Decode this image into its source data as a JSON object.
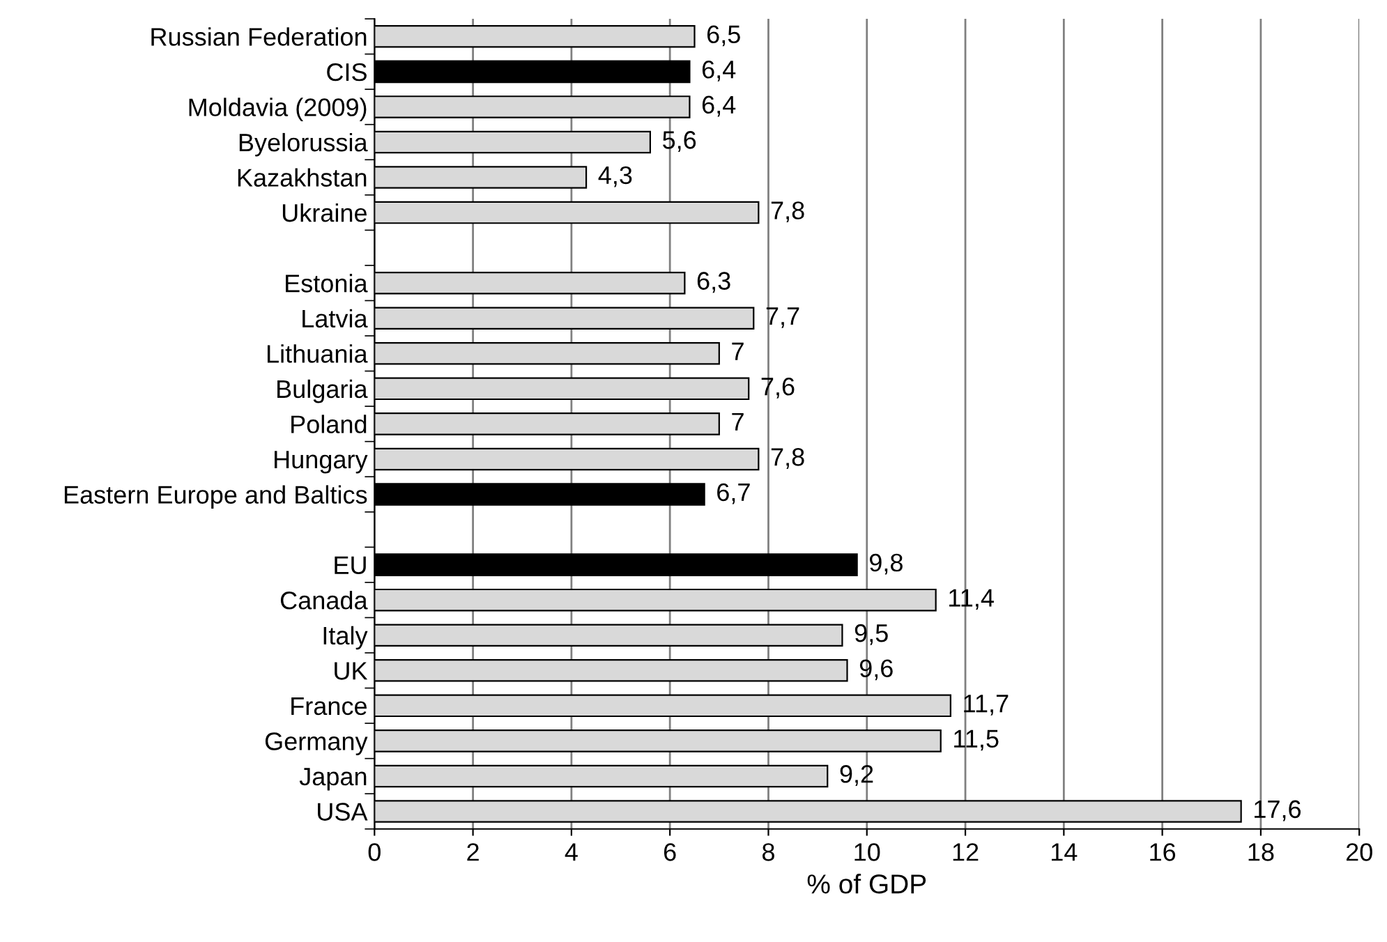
{
  "chart_data": {
    "type": "bar",
    "orientation": "horizontal",
    "xlabel": "% of GDP",
    "categories": [
      "Russian Federation",
      "CIS",
      "Moldavia (2009)",
      "Byelorussia",
      "Kazakhstan",
      "Ukraine",
      null,
      "Estonia",
      "Latvia",
      "Lithuania",
      "Bulgaria",
      "Poland",
      "Hungary",
      "Eastern Europe and Baltics",
      null,
      "EU",
      "Canada",
      "Italy",
      "UK",
      "France",
      "Germany",
      "Japan",
      "USA"
    ],
    "values": [
      6.5,
      6.4,
      6.4,
      5.6,
      4.3,
      7.8,
      null,
      6.3,
      7.7,
      7,
      7.6,
      7,
      7.8,
      6.7,
      null,
      9.8,
      11.4,
      9.5,
      9.6,
      11.7,
      11.5,
      9.2,
      17.6
    ],
    "value_labels": [
      "6,5",
      "6,4",
      "6,4",
      "5,6",
      "4,3",
      "7,8",
      null,
      "6,3",
      "7,7",
      "7",
      "7,6",
      "7",
      "7,8",
      "6,7",
      null,
      "9,8",
      "11,4",
      "9,5",
      "9,6",
      "11,7",
      "11,5",
      "9,2",
      "17,6"
    ],
    "colors": [
      "#d9d9d9",
      "#000000",
      "#d9d9d9",
      "#d9d9d9",
      "#d9d9d9",
      "#d9d9d9",
      null,
      "#d9d9d9",
      "#d9d9d9",
      "#d9d9d9",
      "#d9d9d9",
      "#d9d9d9",
      "#d9d9d9",
      "#000000",
      null,
      "#000000",
      "#d9d9d9",
      "#d9d9d9",
      "#d9d9d9",
      "#d9d9d9",
      "#d9d9d9",
      "#d9d9d9",
      "#d9d9d9"
    ],
    "xlim": [
      0,
      20
    ],
    "xticks": [
      0,
      2,
      4,
      6,
      8,
      10,
      12,
      14,
      16,
      18,
      20
    ],
    "grid": "x"
  }
}
